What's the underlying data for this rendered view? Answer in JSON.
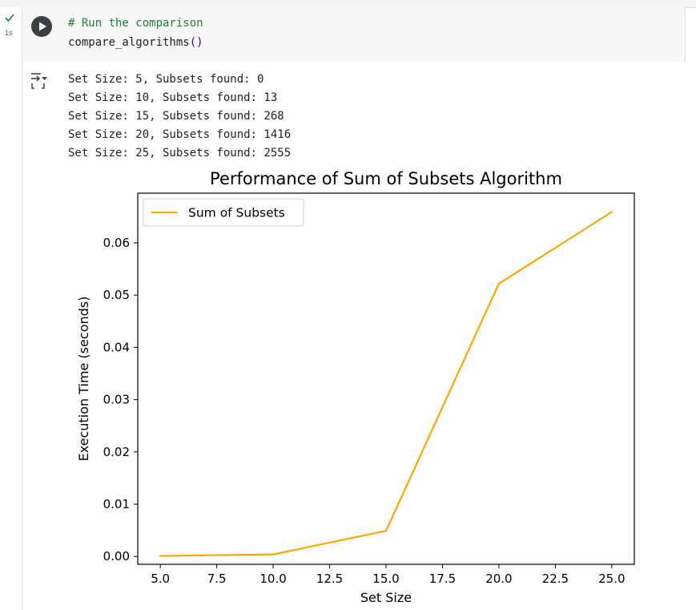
{
  "cell": {
    "status": "success",
    "exec_time": "1s",
    "code_comment": "# Run the comparison",
    "code_call": "compare_algorithms",
    "code_parens": "()"
  },
  "icons": {
    "run": "play-icon",
    "status": "check-icon",
    "output_toggle": "output-toggle-icon"
  },
  "output": {
    "lines": [
      "Set Size: 5, Subsets found: 0",
      "Set Size: 10, Subsets found: 13",
      "Set Size: 15, Subsets found: 268",
      "Set Size: 20, Subsets found: 1416",
      "Set Size: 25, Subsets found: 2555"
    ]
  },
  "chart_data": {
    "type": "line",
    "title": "Performance of Sum of Subsets Algorithm",
    "xlabel": "Set Size",
    "ylabel": "Execution Time (seconds)",
    "xlim": [
      4.0,
      26.0
    ],
    "ylim": [
      -0.0015,
      0.0695
    ],
    "x_ticks": [
      5.0,
      7.5,
      10.0,
      12.5,
      15.0,
      17.5,
      20.0,
      22.5,
      25.0
    ],
    "x_tick_labels": [
      "5.0",
      "7.5",
      "10.0",
      "12.5",
      "15.0",
      "17.5",
      "20.0",
      "22.5",
      "25.0"
    ],
    "y_ticks": [
      0.0,
      0.01,
      0.02,
      0.03,
      0.04,
      0.05,
      0.06
    ],
    "y_tick_labels": [
      "0.00",
      "0.01",
      "0.02",
      "0.03",
      "0.04",
      "0.05",
      "0.06"
    ],
    "series": [
      {
        "name": "Sum of Subsets",
        "color": "#ffa500",
        "x": [
          5,
          10,
          15,
          20,
          25
        ],
        "y": [
          0.0001,
          0.0004,
          0.0049,
          0.0522,
          0.0659
        ]
      }
    ],
    "legend_position": "upper-left",
    "grid": false
  }
}
